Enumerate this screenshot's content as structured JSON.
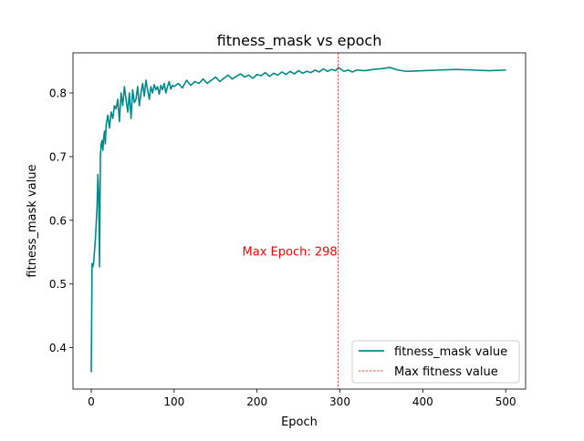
{
  "chart_data": {
    "type": "line",
    "title": "fitness_mask vs epoch",
    "xlabel": "Epoch",
    "ylabel": "fitness_mask value",
    "xlim": [
      -22,
      524
    ],
    "ylim": [
      0.335,
      0.863
    ],
    "xticks": [
      0,
      100,
      200,
      300,
      400,
      500
    ],
    "xtick_labels": [
      "0",
      "100",
      "200",
      "300",
      "400",
      "500"
    ],
    "yticks": [
      0.4,
      0.5,
      0.6,
      0.7,
      0.8
    ],
    "ytick_labels": [
      "0.4",
      "0.5",
      "0.6",
      "0.7",
      "0.8"
    ],
    "grid": false,
    "legend_position": "lower right",
    "series": [
      {
        "name": "fitness_mask value",
        "color": "#008b8b",
        "x": [
          0,
          1,
          2,
          3,
          5,
          7,
          8,
          9,
          10,
          11,
          12,
          13,
          14,
          15,
          16,
          17,
          18,
          20,
          22,
          24,
          26,
          28,
          30,
          32,
          34,
          36,
          38,
          40,
          42,
          44,
          46,
          48,
          50,
          52,
          54,
          56,
          58,
          60,
          62,
          64,
          66,
          68,
          70,
          72,
          74,
          76,
          78,
          80,
          82,
          84,
          86,
          88,
          90,
          92,
          94,
          96,
          98,
          100,
          105,
          110,
          115,
          120,
          125,
          130,
          135,
          140,
          145,
          150,
          155,
          160,
          165,
          170,
          175,
          180,
          185,
          190,
          195,
          200,
          205,
          210,
          215,
          220,
          225,
          230,
          235,
          240,
          245,
          250,
          255,
          260,
          265,
          270,
          275,
          280,
          285,
          290,
          295,
          298,
          305,
          310,
          315,
          320,
          330,
          340,
          350,
          360,
          370,
          380,
          400,
          420,
          440,
          460,
          480,
          500
        ],
        "y": [
          0.362,
          0.532,
          0.527,
          0.535,
          0.57,
          0.62,
          0.672,
          0.64,
          0.527,
          0.7,
          0.72,
          0.725,
          0.71,
          0.73,
          0.74,
          0.72,
          0.75,
          0.765,
          0.745,
          0.77,
          0.76,
          0.78,
          0.775,
          0.79,
          0.755,
          0.8,
          0.78,
          0.81,
          0.79,
          0.77,
          0.8,
          0.76,
          0.805,
          0.785,
          0.79,
          0.81,
          0.78,
          0.8,
          0.815,
          0.795,
          0.82,
          0.805,
          0.79,
          0.81,
          0.8,
          0.813,
          0.805,
          0.81,
          0.798,
          0.812,
          0.805,
          0.815,
          0.8,
          0.81,
          0.818,
          0.806,
          0.812,
          0.81,
          0.815,
          0.808,
          0.82,
          0.812,
          0.818,
          0.815,
          0.822,
          0.815,
          0.82,
          0.825,
          0.818,
          0.823,
          0.828,
          0.822,
          0.826,
          0.83,
          0.825,
          0.828,
          0.823,
          0.829,
          0.827,
          0.832,
          0.826,
          0.831,
          0.828,
          0.833,
          0.829,
          0.834,
          0.83,
          0.835,
          0.831,
          0.834,
          0.832,
          0.836,
          0.833,
          0.838,
          0.834,
          0.837,
          0.835,
          0.84,
          0.834,
          0.836,
          0.833,
          0.836,
          0.835,
          0.837,
          0.838,
          0.84,
          0.836,
          0.834,
          0.835,
          0.836,
          0.837,
          0.836,
          0.835,
          0.836
        ]
      },
      {
        "name": "Max fitness value",
        "color": "#ff0000",
        "style": "dashed-vertical",
        "x": 298
      }
    ],
    "annotation": {
      "text": "Max Epoch: 298",
      "x": 298,
      "y": 0.55,
      "color": "#ff0000",
      "align": "right"
    }
  }
}
